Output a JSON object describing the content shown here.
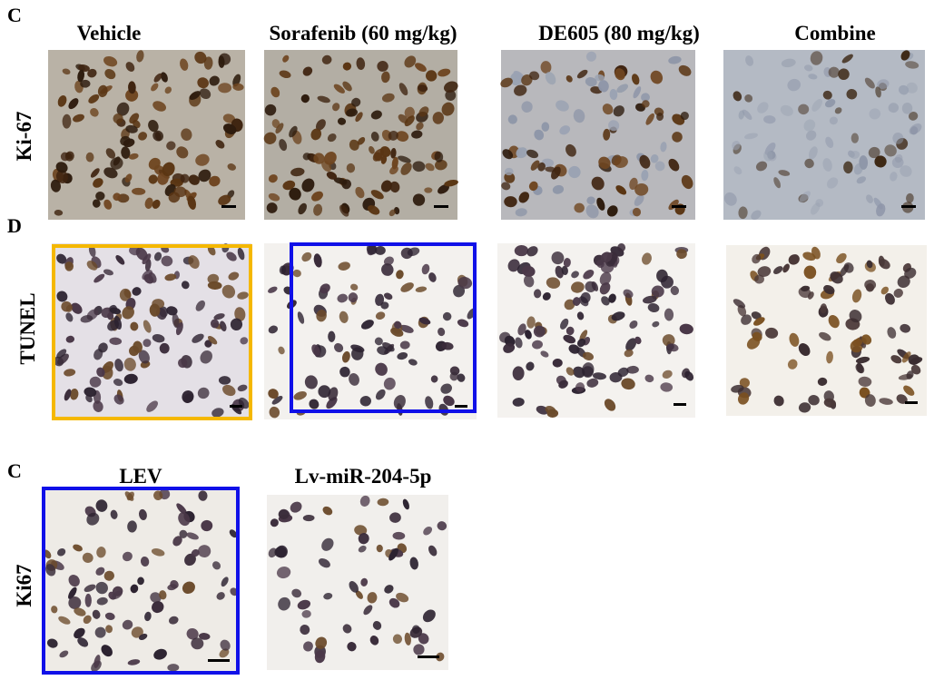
{
  "panels": [
    {
      "label": "C",
      "columns": [
        "Vehicle",
        "Sorafenib (60 mg/kg)",
        "DE605 (80 mg/kg)",
        "Combine"
      ],
      "row_label": "Ki-67"
    },
    {
      "label": "D",
      "row_label": "TUNEL"
    },
    {
      "label": "C",
      "columns": [
        "LEV",
        "Lv-miR-204-5p"
      ],
      "row_label": "Ki67"
    }
  ]
}
